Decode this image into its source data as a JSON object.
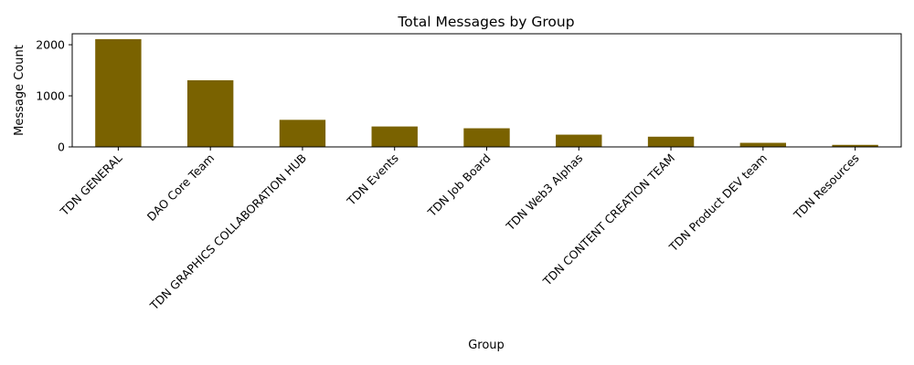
{
  "chart_data": {
    "type": "bar",
    "title": "Total Messages by Group",
    "xlabel": "Group",
    "ylabel": "Message Count",
    "categories": [
      "TDN GENERAL",
      "DAO Core Team",
      "TDN GRAPHICS COLLABORATION HUB",
      "TDN Events",
      "TDN Job Board",
      "TDN Web3 Alphas",
      "TDN CONTENT CREATION TEAM",
      "TDN Product DEV team",
      "TDN Resources"
    ],
    "values": [
      2110,
      1305,
      530,
      400,
      365,
      240,
      200,
      80,
      40
    ],
    "ylim": [
      0,
      2215
    ],
    "yticks": [
      0,
      1000,
      2000
    ],
    "bar_color": "#7a6200",
    "grid": false,
    "legend": "none"
  }
}
